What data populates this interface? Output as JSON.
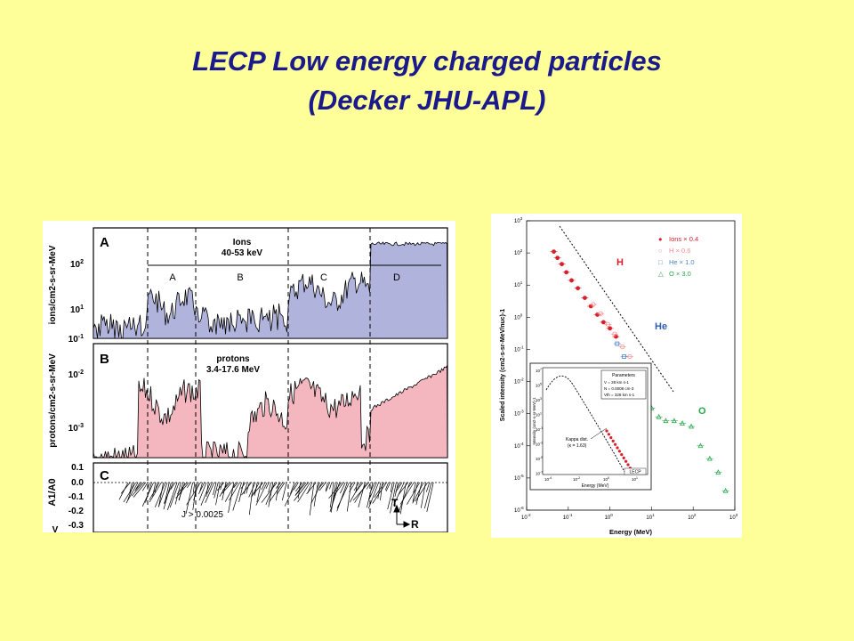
{
  "slide": {
    "title_line1": "LECP Low energy charged particles",
    "title_line2": "(Decker JHU-APL)"
  },
  "colors": {
    "background": "#ffff99",
    "title": "#1a1a8c",
    "ions_fill": "#b0b4dc",
    "protons_fill": "#f4b7c0",
    "ions_marker": "#d61f2b",
    "h_marker": "#ff8a8a",
    "he_marker": "#4a84c8",
    "o_marker": "#2aa84a"
  },
  "left_figure": {
    "panel_a": {
      "letter": "A",
      "label_line1": "Ions",
      "label_line2": "40-53 keV",
      "ylabel": "ions/cm2-s-sr-MeV",
      "ticks": [
        "10",
        "10",
        "10"
      ],
      "tick_exps": [
        "2",
        "1",
        "-1"
      ],
      "regions": [
        "A",
        "B",
        "C",
        "D"
      ]
    },
    "panel_b": {
      "letter": "B",
      "label_line1": "protons",
      "label_line2": "3.4-17.6 MeV",
      "ylabel": "protons/cm2-s-sr-MeV",
      "ticks": [
        "10",
        "10"
      ],
      "tick_exps": [
        "-2",
        "-3"
      ]
    },
    "panel_c": {
      "letter": "C",
      "ylabel": "A1/A0",
      "ticks": [
        "0.1",
        "0.0",
        "-0.1",
        "-0.2",
        "-0.3"
      ],
      "threshold": "J > 0.0025",
      "axis_t": "T",
      "axis_r": "R",
      "edge_label": "V"
    }
  },
  "chart_data": {
    "type": "scatter",
    "xlabel": "Energy (MeV)",
    "ylabel": "Scaled intensity (cm2-s-sr-MeV/nuc)-1",
    "xscale": "log",
    "yscale": "log",
    "xlim": [
      0.01,
      1000
    ],
    "ylim": [
      1e-06,
      1000
    ],
    "x_ticks": [
      "10",
      "10",
      "10",
      "10",
      "10",
      "10"
    ],
    "x_tick_exps": [
      "-2",
      "-1",
      "0",
      "1",
      "2",
      "3"
    ],
    "y_ticks": [
      "10",
      "10",
      "10",
      "10",
      "10",
      "10",
      "10",
      "10",
      "10",
      "10"
    ],
    "y_tick_exps": [
      "3",
      "2",
      "1",
      "0",
      "-1",
      "-2",
      "-3",
      "-4",
      "-5",
      "-6"
    ],
    "legend_position": "top-right",
    "legend": [
      {
        "symbol": "●",
        "label": "Ions × 0.4"
      },
      {
        "symbol": "○",
        "label": "H × 0.6"
      },
      {
        "symbol": "□",
        "label": "He × 1.0"
      },
      {
        "symbol": "△",
        "label": "O × 3.0"
      }
    ],
    "annotations": [
      "H",
      "He",
      "O"
    ],
    "series": [
      {
        "name": "Ions × 0.4",
        "marker": "filled-circle",
        "x": [
          0.045,
          0.055,
          0.07,
          0.09,
          0.12,
          0.17,
          0.25,
          0.35,
          0.5,
          0.7,
          1.0,
          1.4
        ],
        "y": [
          110,
          70,
          45,
          25,
          14,
          8,
          4,
          2.2,
          1.2,
          0.7,
          0.45,
          0.25
        ]
      },
      {
        "name": "H × 0.6",
        "marker": "open-circle",
        "x": [
          0.4,
          0.6,
          0.9,
          1.3,
          2.0,
          3.0,
          4.5
        ],
        "y": [
          2.5,
          1.3,
          0.6,
          0.3,
          0.12,
          0.06,
          0.025
        ]
      },
      {
        "name": "He × 1.0",
        "marker": "open-square",
        "x": [
          1.5,
          2.2,
          3.2,
          4.5,
          6.5
        ],
        "y": [
          0.15,
          0.06,
          0.025,
          0.01,
          0.004
        ]
      },
      {
        "name": "O × 3.0",
        "marker": "open-triangle",
        "x": [
          6.5,
          10,
          15,
          22,
          35,
          55,
          90,
          150,
          250,
          400,
          600
        ],
        "y": [
          0.003,
          0.0015,
          0.0008,
          0.0006,
          0.0006,
          0.0005,
          0.0004,
          0.0001,
          4e-05,
          1.5e-05,
          4e-06
        ]
      }
    ],
    "inset": {
      "xlabel": "Energy (MeV)",
      "ylabel": "Intensity (cm2-s-sr-MeV)-1",
      "x_ticks": [
        "10",
        "10",
        "10",
        "10"
      ],
      "x_tick_exps": [
        "-4",
        "-2",
        "0",
        "1"
      ],
      "y_ticks": [
        "10",
        "10",
        "10",
        "10",
        "10",
        "10",
        "10",
        "10"
      ],
      "y_tick_exps": [
        "7",
        "5",
        "3",
        "1",
        "-1",
        "-3",
        "-5",
        "-7"
      ],
      "parameters_title": "Parameters",
      "parameters": [
        "V = 28 km s-1",
        "N = 0.0008 cm-3",
        "Vth = 328 km s-1"
      ],
      "kappa_line1": "Kappa dist.",
      "kappa_line2": "(κ = 1.63)",
      "lecp_label": "LECP"
    }
  }
}
